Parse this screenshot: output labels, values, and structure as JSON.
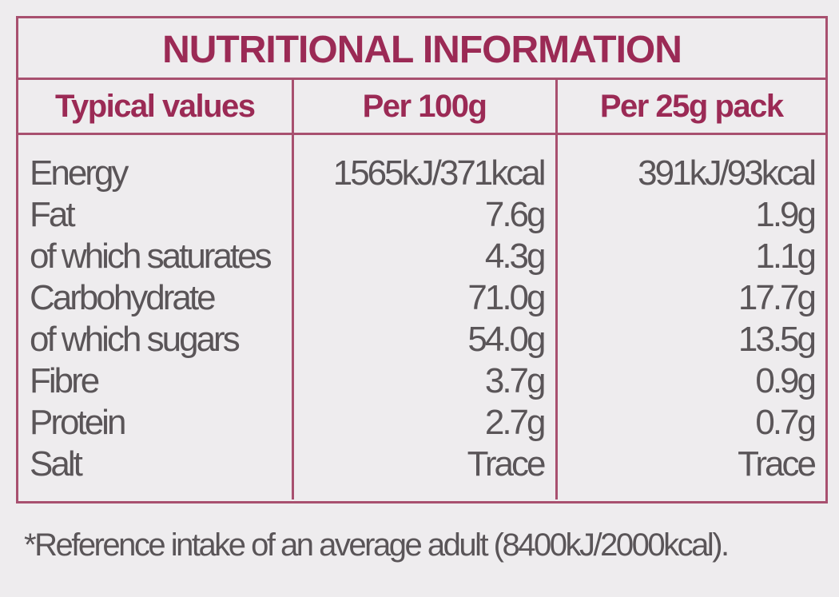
{
  "title": "NUTRITIONAL INFORMATION",
  "table": {
    "headers": [
      "Typical values",
      "Per 100g",
      "Per 25g pack"
    ],
    "rows": [
      [
        "Energy",
        "1565kJ/371kcal",
        "391kJ/93kcal"
      ],
      [
        "Fat",
        "7.6g",
        "1.9g"
      ],
      [
        "of which saturates",
        "4.3g",
        "1.1g"
      ],
      [
        "Carbohydrate",
        "71.0g",
        "17.7g"
      ],
      [
        "of which sugars",
        "54.0g",
        "13.5g"
      ],
      [
        "Fibre",
        "3.7g",
        "0.9g"
      ],
      [
        "Protein",
        "2.7g",
        "0.7g"
      ],
      [
        "Salt",
        "Trace",
        "Trace"
      ]
    ]
  },
  "footnote": "*Reference intake of an average adult (8400kJ/2000kcal)."
}
